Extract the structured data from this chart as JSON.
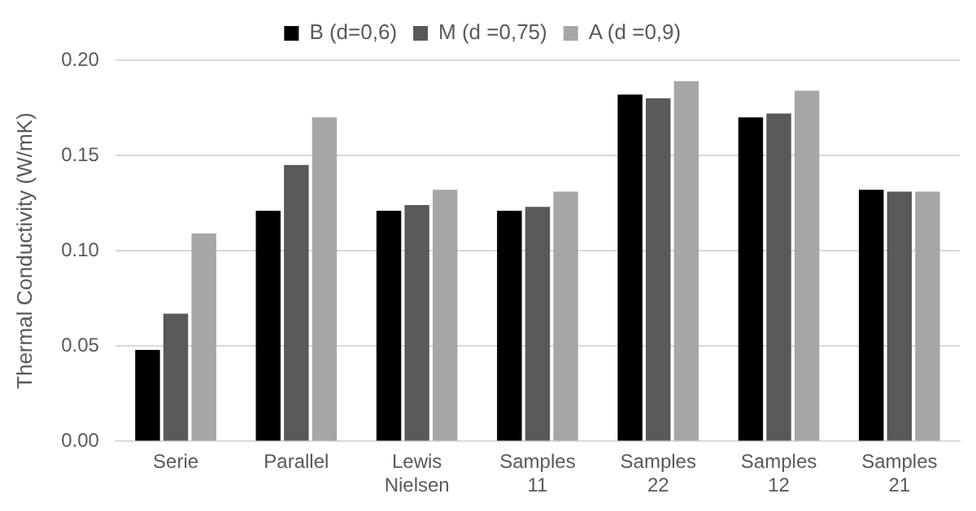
{
  "chart_data": {
    "type": "bar",
    "ylabel": "Thermal Conductivity (W/mK)",
    "categories": [
      "Serie",
      "Parallel",
      "Lewis Nielsen",
      "Samples 11",
      "Samples 22",
      "Samples 12",
      "Samples 21"
    ],
    "series": [
      {
        "name": "B (d=0,6)",
        "color": "#000000",
        "values": [
          0.048,
          0.121,
          0.121,
          0.121,
          0.182,
          0.17,
          0.132
        ]
      },
      {
        "name": "M (d =0,75)",
        "color": "#595959",
        "values": [
          0.067,
          0.145,
          0.124,
          0.123,
          0.18,
          0.172,
          0.131
        ]
      },
      {
        "name": "A (d =0,9)",
        "color": "#a6a6a6",
        "values": [
          0.109,
          0.17,
          0.132,
          0.131,
          0.189,
          0.184,
          0.131
        ]
      }
    ],
    "ylim": [
      0,
      0.2
    ],
    "yticks": [
      {
        "value": 0,
        "label": "0.00"
      },
      {
        "value": 0.05,
        "label": "0.05"
      },
      {
        "value": 0.1,
        "label": "0.10"
      },
      {
        "value": 0.15,
        "label": "0.15"
      },
      {
        "value": 0.2,
        "label": "0.20"
      }
    ],
    "grid": "y",
    "legend": "top"
  }
}
